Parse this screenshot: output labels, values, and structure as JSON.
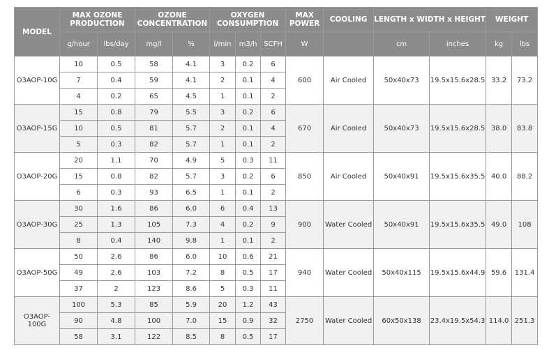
{
  "headers": {
    "model": "MODEL",
    "production": "MAX OZONE PRODUCTION",
    "concentration": "OZONE CONCENTRATION",
    "oxygen": "OXYGEN CONSUMPTION",
    "power": "MAX POWER",
    "cooling": "COOLING",
    "dimensions": "LENGTH x WIDTH x HEIGHT",
    "weight": "WEIGHT"
  },
  "units": [
    "g/hour",
    "lbs/day",
    "mg/l",
    "%",
    "l/min",
    "m3/h",
    "SCFH",
    "W",
    "",
    "cm",
    "inches",
    "kg",
    "lbs"
  ],
  "models": [
    {
      "model": "O3AOP-10G",
      "power": "600",
      "cooling": "Air Cooled",
      "cm": "50x40x73",
      "inches": "19.5x15.6x28.5",
      "kg": "33.2",
      "lbs": "73.2",
      "rows": [
        [
          "10",
          "0.5",
          "58",
          "4.1",
          "3",
          "0.2",
          "6"
        ],
        [
          "7",
          "0.4",
          "59",
          "4.1",
          "2",
          "0.1",
          "4"
        ],
        [
          "4",
          "0.2",
          "65",
          "4.5",
          "1",
          "0.1",
          "2"
        ]
      ]
    },
    {
      "model": "O3AOP-15G",
      "power": "670",
      "cooling": "Air Cooled",
      "cm": "50x40x73",
      "inches": "19.5x15.6x28.5",
      "kg": "38.0",
      "lbs": "83.8",
      "rows": [
        [
          "15",
          "0.8",
          "79",
          "5.5",
          "3",
          "0.2",
          "6"
        ],
        [
          "10",
          "0.5",
          "81",
          "5.7",
          "2",
          "0.1",
          "4"
        ],
        [
          "5",
          "0.3",
          "82",
          "5.7",
          "1",
          "0.1",
          "2"
        ]
      ]
    },
    {
      "model": "O3AOP-20G",
      "power": "850",
      "cooling": "Air Cooled",
      "cm": "50x40x91",
      "inches": "19.5x15.6x35.5",
      "kg": "40.0",
      "lbs": "88.2",
      "rows": [
        [
          "20",
          "1.1",
          "70",
          "4.9",
          "5",
          "0.3",
          "11"
        ],
        [
          "15",
          "0.8",
          "82",
          "5.7",
          "3",
          "0.2",
          "6"
        ],
        [
          "6",
          "0.3",
          "93",
          "6.5",
          "1",
          "0.1",
          "2"
        ]
      ]
    },
    {
      "model": "O3AOP-30G",
      "power": "900",
      "cooling": "Water Cooled",
      "cm": "50x40x91",
      "inches": "19.5x15.6x35.5",
      "kg": "49.0",
      "lbs": "108",
      "rows": [
        [
          "30",
          "1.6",
          "86",
          "6.0",
          "6",
          "0.4",
          "13"
        ],
        [
          "25",
          "1.3",
          "105",
          "7.3",
          "4",
          "0.2",
          "9"
        ],
        [
          "8",
          "0.4",
          "140",
          "9.8",
          "1",
          "0.1",
          "2"
        ]
      ]
    },
    {
      "model": "O3AOP-50G",
      "power": "940",
      "cooling": "Water Cooled",
      "cm": "50x40x115",
      "inches": "19.5x15.6x44.9",
      "kg": "59.6",
      "lbs": "131.4",
      "rows": [
        [
          "50",
          "2.6",
          "86",
          "6.0",
          "10",
          "0.6",
          "21"
        ],
        [
          "49",
          "2.6",
          "103",
          "7.2",
          "8",
          "0.5",
          "17"
        ],
        [
          "37",
          "2",
          "123",
          "8.6",
          "5",
          "0.3",
          "11"
        ]
      ]
    },
    {
      "model": "O3AOP-100G",
      "power": "2750",
      "cooling": "Water Cooled",
      "cm": "60x50x138",
      "inches": "23.4x19.5x54.3",
      "kg": "114.0",
      "lbs": "251.3",
      "rows": [
        [
          "100",
          "5.3",
          "85",
          "5.9",
          "20",
          "1.2",
          "43"
        ],
        [
          "90",
          "4.8",
          "100",
          "7.0",
          "15",
          "0.9",
          "32"
        ],
        [
          "58",
          "3.1",
          "122",
          "8.5",
          "8",
          "0.5",
          "17"
        ]
      ]
    }
  ]
}
